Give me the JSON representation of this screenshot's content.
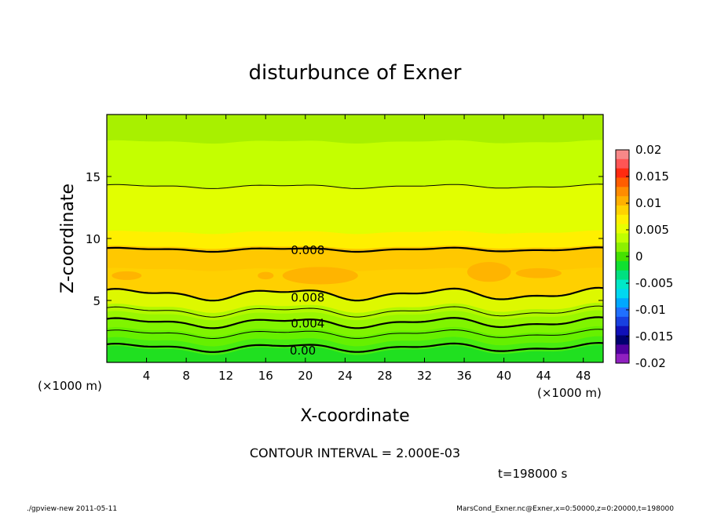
{
  "chart_data": {
    "type": "heatmap",
    "title": "disturbunce of Exner",
    "xlabel": "X-coordinate",
    "ylabel": "Z-coordinate",
    "x_unit": "(×1000 m)",
    "y_unit": "(×1000 m)",
    "xlim": [
      0,
      50
    ],
    "ylim": [
      0,
      20
    ],
    "x_ticks": [
      4,
      8,
      12,
      16,
      20,
      24,
      28,
      32,
      36,
      40,
      44,
      48
    ],
    "y_ticks": [
      5,
      10,
      15
    ],
    "colorbar": {
      "range": [
        -0.02,
        0.02
      ],
      "tick_labels": [
        "0.02",
        "0.015",
        "0.01",
        "0.005",
        "0",
        "-0.005",
        "-0.01",
        "-0.015",
        "-0.02"
      ],
      "colors": [
        "#f88888",
        "#ff5555",
        "#ff2a10",
        "#ff5d00",
        "#ff8c00",
        "#ffb000",
        "#ffd200",
        "#fff000",
        "#e8ff00",
        "#c0ff00",
        "#8cf000",
        "#45e000",
        "#10e030",
        "#00e080",
        "#00e8c8",
        "#00d8f0",
        "#00a8ff",
        "#2070ff",
        "#1840e0",
        "#1010b8",
        "#000070",
        "#5000a0",
        "#9020c0"
      ]
    },
    "bands": [
      {
        "z_max": 1.0,
        "color": "#20e020"
      },
      {
        "z_max": 1.7,
        "color": "#48ec10"
      },
      {
        "z_max": 2.5,
        "color": "#66f000"
      },
      {
        "z_max": 3.2,
        "color": "#80f400"
      },
      {
        "z_max": 3.8,
        "color": "#99f600"
      },
      {
        "z_max": 4.4,
        "color": "#b2f800"
      },
      {
        "z_max": 5.5,
        "color": "#ddf800"
      },
      {
        "z_max": 7.5,
        "color": "#ffd000"
      },
      {
        "z_max": 9.3,
        "color": "#ffc800"
      },
      {
        "z_max": 10.5,
        "color": "#fff000"
      },
      {
        "z_max": 14.2,
        "color": "#e2ff00"
      },
      {
        "z_max": 17.8,
        "color": "#c4ff00"
      },
      {
        "z_max": 20.0,
        "color": "#a8f000"
      }
    ],
    "contours": [
      {
        "z": 1.2,
        "amp": 0.25,
        "width": 2.2
      },
      {
        "z": 2.3,
        "amp": 0.25,
        "width": 1.0
      },
      {
        "z": 3.2,
        "amp": 0.3,
        "width": 2.2
      },
      {
        "z": 4.1,
        "amp": 0.3,
        "width": 1.0
      },
      {
        "z": 5.5,
        "amp": 0.35,
        "width": 2.2
      },
      {
        "z": 9.1,
        "amp": 0.12,
        "width": 2.2
      },
      {
        "z": 14.2,
        "amp": 0.12,
        "width": 1.0
      }
    ],
    "contour_labels": [
      {
        "text": "0.008",
        "x": 18.5,
        "z": 9.1
      },
      {
        "text": "0.008",
        "x": 18.5,
        "z": 5.3
      },
      {
        "text": "0.004",
        "x": 18.5,
        "z": 3.2
      },
      {
        "text": "0.00",
        "x": 18.0,
        "z": 1.0
      }
    ],
    "blobs": [
      {
        "x": 2.0,
        "z": 7.0,
        "rx": 1.5,
        "rz": 0.35
      },
      {
        "x": 16.0,
        "z": 7.0,
        "rx": 0.8,
        "rz": 0.3
      },
      {
        "x": 21.5,
        "z": 7.0,
        "rx": 3.8,
        "rz": 0.7
      },
      {
        "x": 38.5,
        "z": 7.3,
        "rx": 2.2,
        "rz": 0.8
      },
      {
        "x": 43.5,
        "z": 7.2,
        "rx": 2.3,
        "rz": 0.4
      }
    ]
  },
  "footer": {
    "contour_interval": "CONTOUR INTERVAL = 2.000E-03",
    "time": "t=198000 s",
    "left_note": "./gpview-new  2011-05-11",
    "right_note": "MarsCond_Exner.nc@Exner,x=0:50000,z=0:20000,t=198000"
  }
}
